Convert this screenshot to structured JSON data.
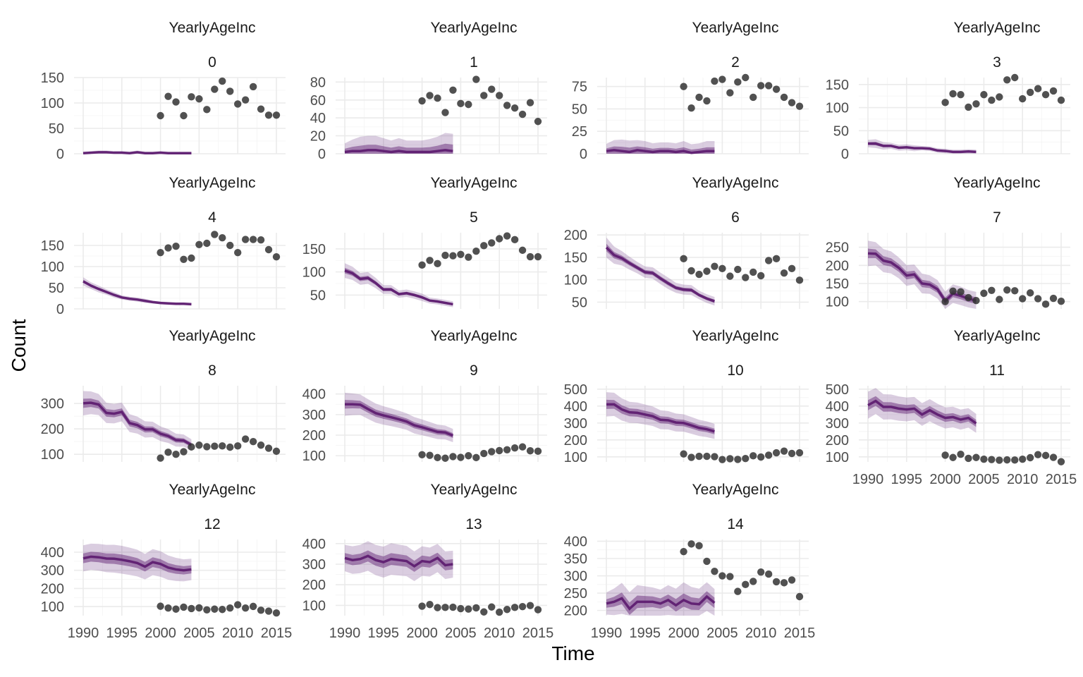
{
  "chart_data": {
    "type": "scatter",
    "layout": "faceted-grid",
    "xlabel": "Time",
    "ylabel": "Count",
    "x_ticks": [
      1990,
      1995,
      2000,
      2005,
      2010,
      2015
    ],
    "xlim": [
      1990,
      2015
    ],
    "legend": "none",
    "grid": true,
    "colors": {
      "model": "#5b1a6e",
      "observed": "#333333",
      "band": "#7b4a8e"
    },
    "facets": [
      {
        "strip_top": "YearlyAgeInc",
        "strip_bottom": "0",
        "ylim": [
          0,
          150
        ],
        "yticks": [
          0,
          50,
          100,
          150
        ],
        "model": [
          1,
          2,
          3,
          3,
          2,
          2,
          1,
          3,
          1,
          1,
          2,
          1,
          1,
          1,
          1
        ],
        "band": [
          2,
          2,
          2,
          2,
          2,
          2,
          2,
          2,
          2,
          2,
          2,
          2,
          2,
          2,
          2
        ],
        "obs": [
          75,
          113,
          102,
          75,
          112,
          108,
          87,
          127,
          143,
          123,
          98,
          106,
          132,
          88,
          76,
          76
        ]
      },
      {
        "strip_top": "YearlyAgeInc",
        "strip_bottom": "1",
        "ylim": [
          0,
          85
        ],
        "yticks": [
          0,
          20,
          40,
          60,
          80
        ],
        "model": [
          2,
          3,
          3,
          4,
          4,
          3,
          2,
          3,
          2,
          2,
          2,
          2,
          3,
          4,
          3
        ],
        "band": [
          6,
          8,
          10,
          10,
          10,
          9,
          8,
          9,
          8,
          8,
          8,
          9,
          10,
          12,
          12
        ],
        "obs": [
          59,
          65,
          62,
          46,
          71,
          56,
          55,
          83,
          65,
          72,
          65,
          54,
          51,
          44,
          57,
          36
        ]
      },
      {
        "strip_top": "YearlyAgeInc",
        "strip_bottom": "2",
        "ylim": [
          0,
          85
        ],
        "yticks": [
          0,
          25,
          50,
          75
        ],
        "model": [
          3,
          4,
          3,
          2,
          4,
          3,
          2,
          3,
          3,
          2,
          3,
          1,
          2,
          3,
          3
        ],
        "band": [
          5,
          7,
          8,
          8,
          7,
          7,
          6,
          6,
          6,
          6,
          7,
          6,
          6,
          7,
          7
        ],
        "obs": [
          75,
          51,
          63,
          59,
          81,
          83,
          68,
          80,
          85,
          63,
          76,
          76,
          72,
          63,
          57,
          53
        ]
      },
      {
        "strip_top": "YearlyAgeInc",
        "strip_bottom": "3",
        "ylim": [
          0,
          165
        ],
        "yticks": [
          0,
          50,
          100,
          150
        ],
        "model": [
          22,
          22,
          17,
          17,
          13,
          14,
          12,
          12,
          11,
          7,
          6,
          4,
          4,
          5,
          4
        ],
        "band": [
          5,
          6,
          5,
          4,
          4,
          4,
          4,
          3,
          3,
          3,
          3,
          3,
          3,
          3,
          3
        ],
        "obs": [
          111,
          130,
          128,
          101,
          108,
          128,
          116,
          123,
          160,
          165,
          119,
          133,
          141,
          128,
          136,
          116
        ]
      },
      {
        "strip_top": "YearlyAgeInc",
        "strip_bottom": "4",
        "ylim": [
          0,
          180
        ],
        "yticks": [
          0,
          50,
          100,
          150
        ],
        "model": [
          65,
          55,
          47,
          40,
          33,
          27,
          24,
          22,
          19,
          16,
          14,
          13,
          12,
          12,
          11
        ],
        "band": [
          6,
          5,
          5,
          4,
          4,
          3,
          3,
          3,
          3,
          2,
          2,
          2,
          2,
          2,
          2
        ],
        "obs": [
          133,
          144,
          148,
          117,
          120,
          152,
          155,
          176,
          168,
          150,
          133,
          164,
          164,
          163,
          140,
          123
        ]
      },
      {
        "strip_top": "YearlyAgeInc",
        "strip_bottom": "5",
        "ylim": [
          20,
          185
        ],
        "yticks": [
          50,
          100,
          150
        ],
        "model": [
          103,
          97,
          85,
          87,
          76,
          62,
          62,
          52,
          54,
          50,
          45,
          38,
          36,
          33,
          30
        ],
        "band": [
          10,
          9,
          8,
          8,
          7,
          6,
          6,
          5,
          5,
          5,
          5,
          4,
          4,
          4,
          4
        ],
        "obs": [
          115,
          125,
          118,
          136,
          135,
          138,
          132,
          145,
          157,
          163,
          172,
          178,
          170,
          147,
          133,
          133
        ]
      },
      {
        "strip_top": "YearlyAgeInc",
        "strip_bottom": "6",
        "ylim": [
          35,
          205
        ],
        "yticks": [
          50,
          100,
          150,
          200
        ],
        "model": [
          172,
          155,
          148,
          137,
          127,
          117,
          115,
          103,
          92,
          82,
          78,
          77,
          66,
          58,
          52
        ],
        "band": [
          14,
          12,
          10,
          9,
          8,
          8,
          8,
          8,
          8,
          7,
          7,
          7,
          6,
          6,
          6
        ],
        "obs": [
          147,
          120,
          112,
          119,
          130,
          125,
          108,
          123,
          105,
          117,
          109,
          143,
          147,
          115,
          125,
          99
        ]
      },
      {
        "strip_top": "YearlyAgeInc",
        "strip_bottom": "7",
        "ylim": [
          80,
          290
        ],
        "yticks": [
          100,
          150,
          200,
          250
        ],
        "model": [
          233,
          232,
          213,
          208,
          193,
          172,
          175,
          150,
          147,
          134,
          102,
          122,
          116,
          108,
          103
        ],
        "band": [
          22,
          20,
          20,
          19,
          18,
          18,
          17,
          17,
          16,
          16,
          16,
          16,
          16,
          15,
          15
        ],
        "obs": [
          100,
          129,
          127,
          111,
          103,
          123,
          131,
          106,
          132,
          130,
          108,
          124,
          108,
          93,
          109,
          101
        ]
      },
      {
        "strip_top": "YearlyAgeInc",
        "strip_bottom": "8",
        "ylim": [
          70,
          370
        ],
        "yticks": [
          100,
          200,
          300
        ],
        "model": [
          301,
          303,
          296,
          263,
          260,
          267,
          223,
          215,
          198,
          198,
          181,
          172,
          156,
          154,
          137
        ],
        "band": [
          30,
          28,
          26,
          25,
          24,
          23,
          22,
          21,
          20,
          19,
          18,
          17,
          16,
          15,
          14
        ],
        "obs": [
          85,
          108,
          100,
          110,
          129,
          136,
          130,
          132,
          133,
          128,
          133,
          160,
          150,
          136,
          124,
          112
        ]
      },
      {
        "strip_top": "YearlyAgeInc",
        "strip_bottom": "9",
        "ylim": [
          70,
          440
        ],
        "yticks": [
          100,
          200,
          300,
          400
        ],
        "model": [
          350,
          350,
          348,
          327,
          307,
          296,
          287,
          277,
          266,
          248,
          238,
          227,
          216,
          213,
          198
        ],
        "band": [
          35,
          33,
          31,
          30,
          29,
          28,
          27,
          26,
          25,
          25,
          24,
          23,
          22,
          21,
          20
        ],
        "obs": [
          105,
          102,
          91,
          88,
          96,
          92,
          100,
          91,
          111,
          120,
          125,
          129,
          138,
          143,
          124,
          122
        ]
      },
      {
        "strip_top": "YearlyAgeInc",
        "strip_bottom": "10",
        "ylim": [
          70,
          520
        ],
        "yticks": [
          100,
          200,
          300,
          400,
          500
        ],
        "model": [
          410,
          410,
          380,
          363,
          360,
          350,
          340,
          319,
          316,
          303,
          300,
          286,
          271,
          263,
          250
        ],
        "band": [
          45,
          43,
          41,
          39,
          38,
          37,
          36,
          35,
          34,
          33,
          32,
          31,
          30,
          29,
          28
        ],
        "obs": [
          117,
          97,
          103,
          103,
          101,
          84,
          89,
          85,
          90,
          106,
          99,
          110,
          124,
          134,
          120,
          124
        ]
      },
      {
        "strip_top": "YearlyAgeInc",
        "strip_bottom": "11",
        "ylim": [
          70,
          520
        ],
        "yticks": [
          100,
          200,
          300,
          400,
          500
        ],
        "model": [
          405,
          430,
          395,
          395,
          385,
          380,
          385,
          350,
          375,
          350,
          330,
          335,
          320,
          330,
          298
        ],
        "band": [
          50,
          48,
          47,
          46,
          45,
          44,
          43,
          42,
          41,
          40,
          39,
          38,
          37,
          36,
          35
        ],
        "obs": [
          110,
          96,
          115,
          91,
          96,
          86,
          84,
          80,
          82,
          81,
          86,
          95,
          113,
          108,
          97,
          71
        ]
      },
      {
        "strip_top": "YearlyAgeInc",
        "strip_bottom": "12",
        "ylim": [
          50,
          470
        ],
        "yticks": [
          100,
          200,
          300,
          400
        ],
        "model": [
          366,
          375,
          372,
          365,
          364,
          358,
          350,
          340,
          320,
          345,
          335,
          315,
          305,
          300,
          305
        ],
        "band": [
          45,
          45,
          46,
          47,
          48,
          48,
          47,
          46,
          44,
          45,
          44,
          42,
          40,
          38,
          37
        ],
        "obs": [
          102,
          92,
          86,
          97,
          89,
          93,
          82,
          86,
          84,
          92,
          110,
          92,
          101,
          80,
          75,
          65
        ]
      },
      {
        "strip_top": "YearlyAgeInc",
        "strip_bottom": "13",
        "ylim": [
          50,
          420
        ],
        "yticks": [
          100,
          200,
          300,
          400
        ],
        "model": [
          330,
          320,
          325,
          340,
          320,
          310,
          325,
          320,
          315,
          290,
          315,
          310,
          330,
          295,
          300
        ],
        "band": [
          40,
          42,
          43,
          45,
          46,
          47,
          48,
          47,
          46,
          45,
          45,
          44,
          43,
          42,
          41
        ],
        "obs": [
          96,
          104,
          89,
          90,
          91,
          84,
          82,
          88,
          68,
          92,
          67,
          80,
          90,
          94,
          99,
          79
        ]
      },
      {
        "strip_top": "YearlyAgeInc",
        "strip_bottom": "14",
        "ylim": [
          185,
          405
        ],
        "yticks": [
          200,
          250,
          300,
          350,
          400
        ],
        "model": [
          220,
          225,
          235,
          205,
          225,
          225,
          225,
          220,
          230,
          215,
          230,
          220,
          218,
          240,
          222
        ],
        "band": [
          20,
          24,
          28,
          30,
          30,
          28,
          26,
          25,
          27,
          30,
          32,
          30,
          28,
          26,
          25
        ],
        "obs": [
          370,
          392,
          387,
          342,
          313,
          300,
          298,
          255,
          275,
          284,
          311,
          305,
          283,
          280,
          288,
          240
        ]
      }
    ]
  }
}
